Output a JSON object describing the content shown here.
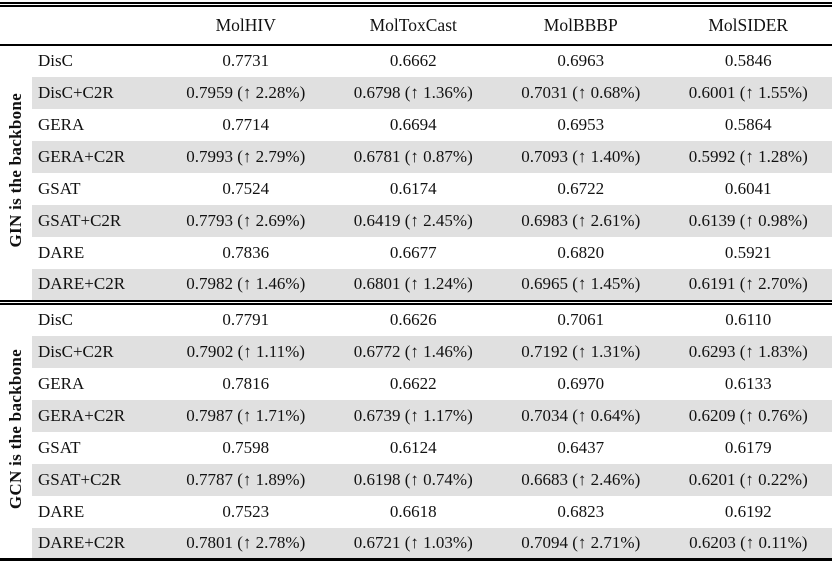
{
  "theme": {
    "highlight": "#e0e0e0",
    "rule": "#000000",
    "text": "#111111",
    "bg": "#ffffff"
  },
  "table": {
    "column_headers": [
      "MolHIV",
      "MolToxCast",
      "MolBBBP",
      "MolSIDER"
    ],
    "blocks": [
      {
        "backbone_label": "GIN is the backbone",
        "rows": [
          {
            "method": "DisC",
            "highlighted": false,
            "values": [
              "0.7731",
              "0.6662",
              "0.6963",
              "0.5846"
            ]
          },
          {
            "method": "DisC+C2R",
            "highlighted": true,
            "values": [
              "0.7959 (↑ 2.28%)",
              "0.6798 (↑ 1.36%)",
              "0.7031 (↑ 0.68%)",
              "0.6001 (↑ 1.55%)"
            ]
          },
          {
            "method": "GERA",
            "highlighted": false,
            "values": [
              "0.7714",
              "0.6694",
              "0.6953",
              "0.5864"
            ]
          },
          {
            "method": "GERA+C2R",
            "highlighted": true,
            "values": [
              "0.7993 (↑ 2.79%)",
              "0.6781 (↑ 0.87%)",
              "0.7093 (↑ 1.40%)",
              "0.5992 (↑ 1.28%)"
            ]
          },
          {
            "method": "GSAT",
            "highlighted": false,
            "values": [
              "0.7524",
              "0.6174",
              "0.6722",
              "0.6041"
            ]
          },
          {
            "method": "GSAT+C2R",
            "highlighted": true,
            "values": [
              "0.7793 (↑ 2.69%)",
              "0.6419 (↑ 2.45%)",
              "0.6983 (↑ 2.61%)",
              "0.6139 (↑ 0.98%)"
            ]
          },
          {
            "method": "DARE",
            "highlighted": false,
            "values": [
              "0.7836",
              "0.6677",
              "0.6820",
              "0.5921"
            ]
          },
          {
            "method": "DARE+C2R",
            "highlighted": true,
            "values": [
              "0.7982 (↑ 1.46%)",
              "0.6801 (↑ 1.24%)",
              "0.6965 (↑ 1.45%)",
              "0.6191 (↑ 2.70%)"
            ]
          }
        ]
      },
      {
        "backbone_label": "GCN is the backbone",
        "rows": [
          {
            "method": "DisC",
            "highlighted": false,
            "values": [
              "0.7791",
              "0.6626",
              "0.7061",
              "0.6110"
            ]
          },
          {
            "method": "DisC+C2R",
            "highlighted": true,
            "values": [
              "0.7902 (↑ 1.11%)",
              "0.6772 (↑ 1.46%)",
              "0.7192 (↑ 1.31%)",
              "0.6293 (↑ 1.83%)"
            ]
          },
          {
            "method": "GERA",
            "highlighted": false,
            "values": [
              "0.7816",
              "0.6622",
              "0.6970",
              "0.6133"
            ]
          },
          {
            "method": "GERA+C2R",
            "highlighted": true,
            "values": [
              "0.7987 (↑ 1.71%)",
              "0.6739 (↑ 1.17%)",
              "0.7034 (↑ 0.64%)",
              "0.6209 (↑ 0.76%)"
            ]
          },
          {
            "method": "GSAT",
            "highlighted": false,
            "values": [
              "0.7598",
              "0.6124",
              "0.6437",
              "0.6179"
            ]
          },
          {
            "method": "GSAT+C2R",
            "highlighted": true,
            "values": [
              "0.7787 (↑ 1.89%)",
              "0.6198 (↑ 0.74%)",
              "0.6683 (↑ 2.46%)",
              "0.6201 (↑ 0.22%)"
            ]
          },
          {
            "method": "DARE",
            "highlighted": false,
            "values": [
              "0.7523",
              "0.6618",
              "0.6823",
              "0.6192"
            ]
          },
          {
            "method": "DARE+C2R",
            "highlighted": true,
            "values": [
              "0.7801 (↑ 2.78%)",
              "0.6721 (↑ 1.03%)",
              "0.7094 (↑ 2.71%)",
              "0.6203 (↑ 0.11%)"
            ]
          }
        ]
      }
    ]
  }
}
